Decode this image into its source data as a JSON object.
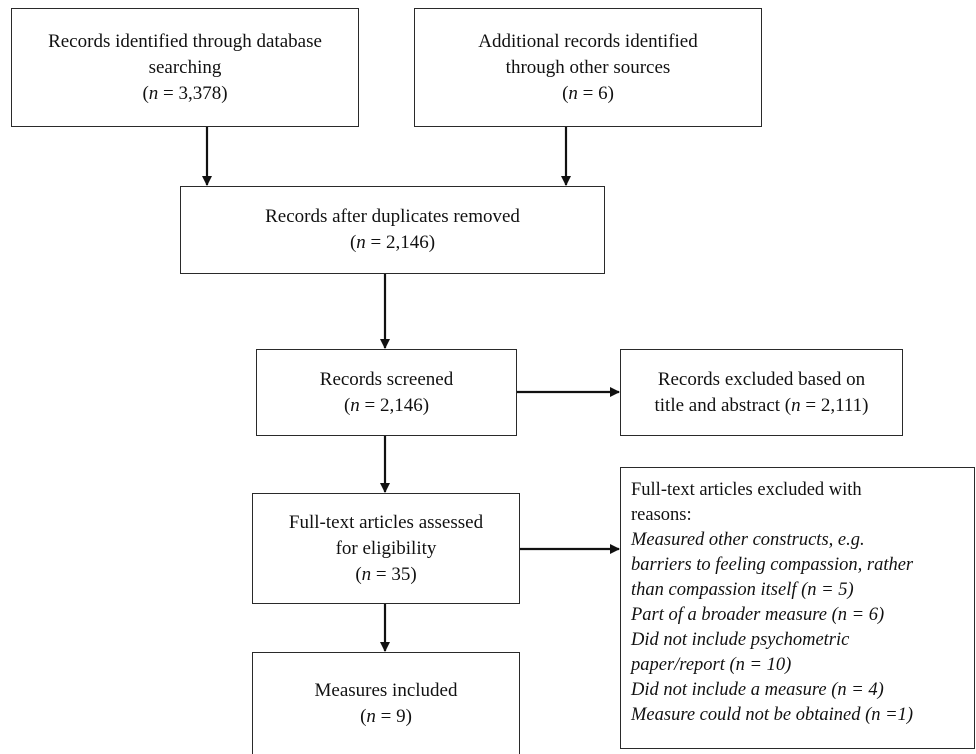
{
  "boxes": {
    "database": {
      "line1": "Records identified through database",
      "line2": "searching",
      "count_pre": "(",
      "count_n": "n",
      "count_post": " = 3,378)"
    },
    "other_sources": {
      "line1": "Additional records identified",
      "line2": "through other sources",
      "count_pre": "(",
      "count_n": "n",
      "count_post": " = 6)"
    },
    "duplicates_removed": {
      "line1": "Records after duplicates removed",
      "count_pre": "(",
      "count_n": "n",
      "count_post": " = 2,146)"
    },
    "screened": {
      "line1": "Records screened",
      "count_pre": "(",
      "count_n": "n",
      "count_post": " = 2,146)"
    },
    "excluded_title_abstract": {
      "line1": "Records excluded based on",
      "line2_pre": "title and abstract (",
      "line2_n": "n",
      "line2_post": " = 2,111)"
    },
    "fulltext_assessed": {
      "line1": "Full-text articles assessed",
      "line2": "for eligibility",
      "count_pre": "(",
      "count_n": "n",
      "count_post": " = 35)"
    },
    "fulltext_excluded": {
      "heading1": "Full-text articles excluded with",
      "heading2": "reasons:",
      "reasons": [
        "Measured other constructs, e.g.",
        "barriers to feeling compassion, rather",
        "than compassion itself (n = 5)",
        "Part of a broader measure (n = 6)",
        "Did not include psychometric",
        "paper/report (n = 10)",
        "Did not include a measure (n = 4)",
        "Measure could not be obtained (n =1)"
      ]
    },
    "measures_included": {
      "line1": "Measures included",
      "count_pre": "(",
      "count_n": "n",
      "count_post": " = 9)"
    }
  }
}
